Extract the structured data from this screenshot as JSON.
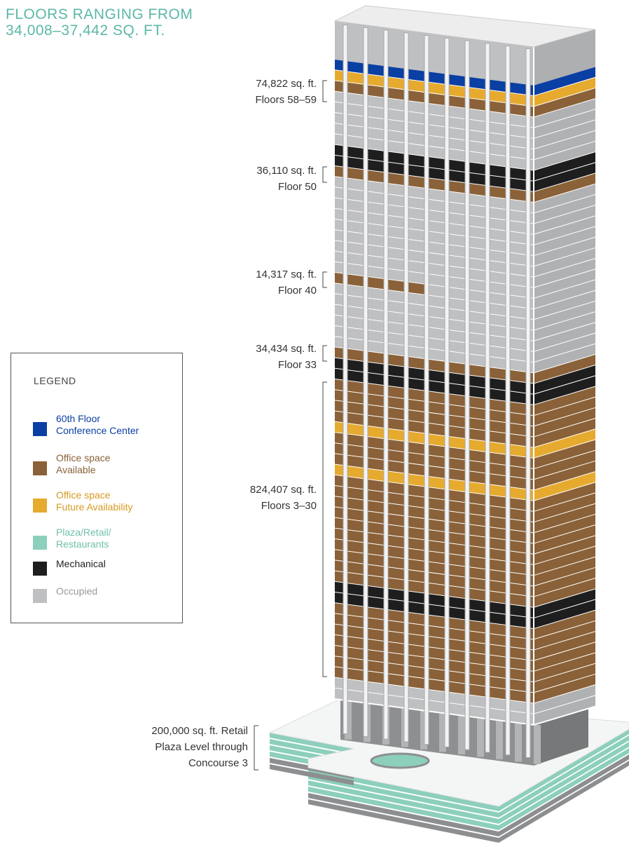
{
  "header": {
    "title_lines": [
      "FLOORS RANGING FROM",
      "34,008–37,442 SQ. FT."
    ]
  },
  "annotations": [
    {
      "lines": [
        "74,822 sq. ft.",
        "Floors 58–59"
      ]
    },
    {
      "lines": [
        "36,110 sq. ft.",
        "Floor 50"
      ]
    },
    {
      "lines": [
        "14,317 sq. ft.",
        "Floor 40"
      ]
    },
    {
      "lines": [
        "34,434 sq. ft.",
        "Floor 33"
      ]
    },
    {
      "lines": [
        "824,407 sq. ft.",
        "Floors 3–30"
      ]
    },
    {
      "lines": [
        "200,000 sq. ft. Retail",
        "Plaza Level through",
        "Concourse 3"
      ]
    }
  ],
  "legend": {
    "title": "LEGEND",
    "items": [
      {
        "lines": [
          "60th Floor",
          "Conference Center"
        ],
        "color": "#0a3fa3"
      },
      {
        "lines": [
          "Office space",
          "Available"
        ],
        "color": "#8a6138"
      },
      {
        "lines": [
          "Office space",
          "Future Availability"
        ],
        "color": "#e6aa2e"
      },
      {
        "lines": [
          "Plaza/Retail/",
          "Restaurants"
        ],
        "color": "#8ccfbc"
      },
      {
        "lines": [
          "Mechanical"
        ],
        "color": "#1e1e1e"
      },
      {
        "lines": [
          "Occupied"
        ],
        "color": "#bfc0c2"
      }
    ]
  }
}
